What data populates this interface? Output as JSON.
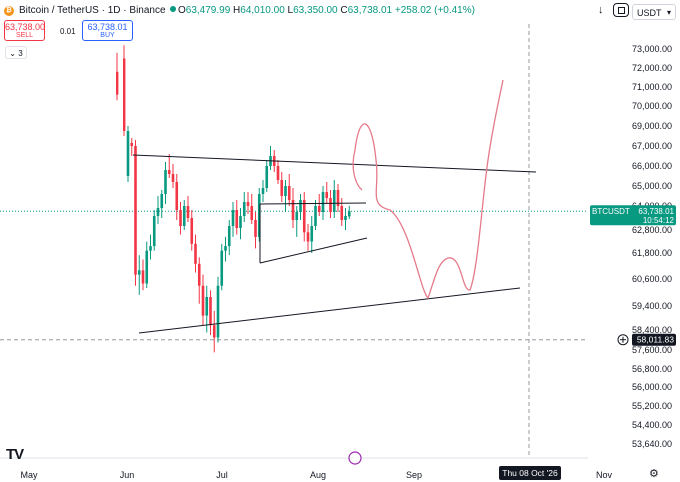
{
  "header": {
    "symbol_icon": "bitcoin-icon",
    "title": "Bitcoin / TetherUS · 1D · Binance",
    "ohlc": {
      "O": "63,479.99",
      "H": "64,010.00",
      "L": "63,350.00",
      "C": "63,738.01",
      "change": "+258.02 (+0.41%)"
    },
    "currency": "USDT"
  },
  "trade": {
    "sell_price": "63,738.00",
    "sell_label": "SELL",
    "spread": "0.01",
    "buy_price": "63,738.01",
    "buy_label": "BUY"
  },
  "indicators_count": "3",
  "colors": {
    "up": "#089981",
    "down": "#f23645",
    "drawing": "#e57a8a",
    "trend": "#131722"
  },
  "chart_data": {
    "type": "candlestick",
    "y_axis": {
      "ticks": [
        "73,000.00",
        "72,000.00",
        "71,000.00",
        "70,000.00",
        "69,000.00",
        "67,000.00",
        "66,000.00",
        "65,000.00",
        "64,000.00",
        "62,800.00",
        "61,800.00",
        "60,600.00",
        "59,400.00",
        "58,400.00",
        "57,600.00",
        "56,800.00",
        "56,000.00",
        "55,200.00",
        "54,400.00",
        "53,640.00"
      ],
      "range": [
        53600,
        74000
      ]
    },
    "x_axis": {
      "ticks": [
        "May",
        "Jun",
        "Jul",
        "Aug",
        "Sep",
        "Nov"
      ]
    },
    "current_price": {
      "symbol": "BTCUSDT",
      "value": "63,738.01",
      "countdown": "10:54:12",
      "y": 63738
    },
    "crosshair": {
      "price_label": "58,011.83",
      "y": 58012,
      "date_label": "Thu 08 Oct '26"
    },
    "candles": [
      {
        "d": 0,
        "o": 65500,
        "h": 69000,
        "l": 65200,
        "c": 68500
      },
      {
        "d": 1,
        "o": 67300,
        "h": 67800,
        "l": 66500,
        "c": 67000
      },
      {
        "d": 2,
        "o": 67000,
        "h": 67600,
        "l": 60300,
        "c": 60800
      },
      {
        "d": 3,
        "o": 60800,
        "h": 61700,
        "l": 59900,
        "c": 61000
      },
      {
        "d": 4,
        "o": 61000,
        "h": 61500,
        "l": 60100,
        "c": 60400
      },
      {
        "d": 5,
        "o": 60400,
        "h": 62300,
        "l": 60200,
        "c": 61900
      },
      {
        "d": 6,
        "o": 61900,
        "h": 62600,
        "l": 61500,
        "c": 62100
      },
      {
        "d": 7,
        "o": 62100,
        "h": 63800,
        "l": 61900,
        "c": 63500
      },
      {
        "d": 8,
        "o": 63500,
        "h": 64500,
        "l": 63100,
        "c": 63900
      },
      {
        "d": 9,
        "o": 63900,
        "h": 64800,
        "l": 63400,
        "c": 64600
      },
      {
        "d": 10,
        "o": 64600,
        "h": 66200,
        "l": 64100,
        "c": 65800
      },
      {
        "d": 11,
        "o": 65800,
        "h": 66600,
        "l": 65400,
        "c": 65600
      },
      {
        "d": 12,
        "o": 65600,
        "h": 66100,
        "l": 64900,
        "c": 65200
      },
      {
        "d": 13,
        "o": 65200,
        "h": 65600,
        "l": 63300,
        "c": 63800
      },
      {
        "d": 14,
        "o": 63800,
        "h": 64200,
        "l": 62600,
        "c": 63000
      },
      {
        "d": 15,
        "o": 63000,
        "h": 64300,
        "l": 62800,
        "c": 64000
      },
      {
        "d": 16,
        "o": 64000,
        "h": 64500,
        "l": 63200,
        "c": 63400
      },
      {
        "d": 17,
        "o": 63400,
        "h": 63800,
        "l": 61900,
        "c": 62200
      },
      {
        "d": 18,
        "o": 62200,
        "h": 62600,
        "l": 60900,
        "c": 61300
      },
      {
        "d": 19,
        "o": 61300,
        "h": 61600,
        "l": 59500,
        "c": 60300
      },
      {
        "d": 20,
        "o": 60300,
        "h": 60800,
        "l": 58600,
        "c": 59000
      },
      {
        "d": 21,
        "o": 59000,
        "h": 60300,
        "l": 58300,
        "c": 59800
      },
      {
        "d": 22,
        "o": 59800,
        "h": 60100,
        "l": 58200,
        "c": 58600
      },
      {
        "d": 23,
        "o": 58600,
        "h": 59200,
        "l": 57500,
        "c": 58100
      },
      {
        "d": 24,
        "o": 58100,
        "h": 60700,
        "l": 57900,
        "c": 60300
      },
      {
        "d": 25,
        "o": 60300,
        "h": 62200,
        "l": 60100,
        "c": 61900
      },
      {
        "d": 26,
        "o": 61900,
        "h": 62500,
        "l": 61400,
        "c": 62100
      },
      {
        "d": 27,
        "o": 62100,
        "h": 63300,
        "l": 61700,
        "c": 63000
      },
      {
        "d": 28,
        "o": 63000,
        "h": 64200,
        "l": 62500,
        "c": 63800
      },
      {
        "d": 29,
        "o": 63800,
        "h": 64300,
        "l": 62600,
        "c": 62900
      },
      {
        "d": 30,
        "o": 62900,
        "h": 63900,
        "l": 62400,
        "c": 63500
      },
      {
        "d": 31,
        "o": 63500,
        "h": 64700,
        "l": 63200,
        "c": 64200
      },
      {
        "d": 32,
        "o": 64200,
        "h": 64700,
        "l": 63600,
        "c": 64000
      },
      {
        "d": 33,
        "o": 64000,
        "h": 64600,
        "l": 63100,
        "c": 63300
      },
      {
        "d": 34,
        "o": 63300,
        "h": 63700,
        "l": 62000,
        "c": 62500
      },
      {
        "d": 35,
        "o": 62500,
        "h": 64900,
        "l": 62300,
        "c": 64600
      },
      {
        "d": 36,
        "o": 64600,
        "h": 65300,
        "l": 64200,
        "c": 64900
      },
      {
        "d": 37,
        "o": 64900,
        "h": 66300,
        "l": 64700,
        "c": 66000
      },
      {
        "d": 38,
        "o": 66000,
        "h": 67000,
        "l": 65800,
        "c": 66500
      },
      {
        "d": 39,
        "o": 66500,
        "h": 66800,
        "l": 65700,
        "c": 66000
      },
      {
        "d": 40,
        "o": 66000,
        "h": 66300,
        "l": 65100,
        "c": 65300
      },
      {
        "d": 41,
        "o": 65300,
        "h": 65700,
        "l": 64200,
        "c": 64500
      },
      {
        "d": 42,
        "o": 64500,
        "h": 65300,
        "l": 63700,
        "c": 65000
      },
      {
        "d": 43,
        "o": 65000,
        "h": 65600,
        "l": 64000,
        "c": 64300
      },
      {
        "d": 44,
        "o": 64300,
        "h": 64900,
        "l": 62900,
        "c": 63300
      },
      {
        "d": 45,
        "o": 63300,
        "h": 64000,
        "l": 62500,
        "c": 63700
      },
      {
        "d": 46,
        "o": 63700,
        "h": 64600,
        "l": 63300,
        "c": 64300
      },
      {
        "d": 47,
        "o": 64300,
        "h": 64700,
        "l": 62300,
        "c": 62700
      },
      {
        "d": 48,
        "o": 62700,
        "h": 63100,
        "l": 61900,
        "c": 62300
      },
      {
        "d": 49,
        "o": 62300,
        "h": 63500,
        "l": 61800,
        "c": 63000
      },
      {
        "d": 50,
        "o": 63000,
        "h": 64300,
        "l": 62800,
        "c": 64000
      },
      {
        "d": 51,
        "o": 64000,
        "h": 64600,
        "l": 63500,
        "c": 63700
      },
      {
        "d": 52,
        "o": 63700,
        "h": 65000,
        "l": 63300,
        "c": 64700
      },
      {
        "d": 53,
        "o": 64700,
        "h": 65200,
        "l": 64100,
        "c": 64400
      },
      {
        "d": 54,
        "o": 64400,
        "h": 64800,
        "l": 63400,
        "c": 63700
      },
      {
        "d": 55,
        "o": 63700,
        "h": 65300,
        "l": 63400,
        "c": 64800
      },
      {
        "d": 56,
        "o": 64800,
        "h": 65100,
        "l": 63700,
        "c": 64000
      },
      {
        "d": 57,
        "o": 64000,
        "h": 64400,
        "l": 63000,
        "c": 63300
      },
      {
        "d": 58,
        "o": 63300,
        "h": 63900,
        "l": 62800,
        "c": 63500
      },
      {
        "d": 59,
        "o": 63480,
        "h": 64010,
        "l": 63350,
        "c": 63738
      }
    ]
  }
}
